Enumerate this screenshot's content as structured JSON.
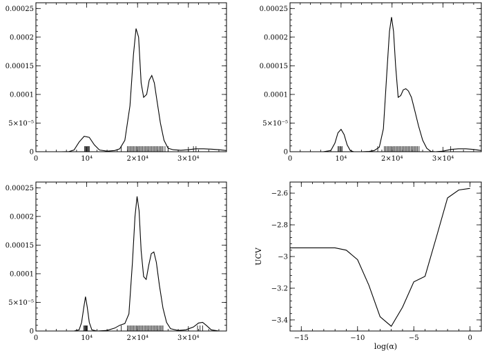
{
  "chart_data": [
    {
      "type": "line",
      "panel": "top-left",
      "xlim": [
        0,
        37500
      ],
      "ylim": [
        0,
        0.00026
      ],
      "xticks": [
        {
          "value": 10000,
          "label": "10⁴"
        },
        {
          "value": 20000,
          "label": "2×10⁴"
        },
        {
          "value": 30000,
          "label": "3×10⁴"
        }
      ],
      "yticks": [
        {
          "value": 0,
          "label": "0"
        },
        {
          "value": 5e-05,
          "label": "5×10⁻⁵"
        },
        {
          "value": 0.0001,
          "label": "0.0001"
        },
        {
          "value": 0.00015,
          "label": "0.00015"
        },
        {
          "value": 0.0002,
          "label": "0.0002"
        },
        {
          "value": 0.00025,
          "label": "0.00025"
        }
      ],
      "xlabel": "",
      "ylabel": "",
      "x": [
        5000,
        6500,
        7500,
        8500,
        9500,
        10500,
        11500,
        12500,
        14000,
        15500,
        16500,
        17500,
        18500,
        19200,
        19700,
        20200,
        20700,
        21200,
        21800,
        22300,
        22800,
        23300,
        23800,
        24500,
        25200,
        26000,
        27000,
        28500,
        30000,
        31500,
        33000,
        34500,
        36000,
        37500
      ],
      "y": [
        0,
        2e-07,
        3e-06,
        1.7e-05,
        2.7e-05,
        2.5e-05,
        1.2e-05,
        3e-06,
        1e-06,
        2e-06,
        5e-06,
        2e-05,
        8e-05,
        0.00017,
        0.000215,
        0.0002,
        0.00012,
        9.5e-05,
        0.0001,
        0.000125,
        0.000133,
        0.00012,
        9e-05,
        5e-05,
        2e-05,
        6e-06,
        3.5e-06,
        2.5e-06,
        3.5e-06,
        5e-06,
        5e-06,
        4.5e-06,
        3.5e-06,
        2e-06
      ],
      "rug": [
        9600,
        9750,
        9900,
        10050,
        10200,
        10350,
        10500,
        16800,
        18000,
        18250,
        18500,
        18750,
        19000,
        19250,
        19500,
        19750,
        20000,
        20250,
        20500,
        20750,
        21000,
        21250,
        21500,
        21750,
        22000,
        22250,
        22500,
        22750,
        23000,
        23250,
        23500,
        23750,
        24000,
        24250,
        24500,
        24750,
        25000,
        25400,
        26000,
        31000,
        31500
      ]
    },
    {
      "type": "line",
      "panel": "top-right",
      "xlim": [
        0,
        37500
      ],
      "ylim": [
        0,
        0.00026
      ],
      "xticks": [
        {
          "value": 10000,
          "label": "10⁴"
        },
        {
          "value": 20000,
          "label": "2×10⁴"
        },
        {
          "value": 30000,
          "label": "3×10⁴"
        }
      ],
      "yticks": [
        {
          "value": 0,
          "label": "0"
        },
        {
          "value": 5e-05,
          "label": "5×10⁻⁵"
        },
        {
          "value": 0.0001,
          "label": "0.0001"
        },
        {
          "value": 0.00015,
          "label": "0.00015"
        },
        {
          "value": 0.0002,
          "label": "0.0002"
        },
        {
          "value": 0.00025,
          "label": "0.00025"
        }
      ],
      "xlabel": "",
      "ylabel": "",
      "x": [
        6500,
        8000,
        8800,
        9400,
        10000,
        10600,
        11200,
        11800,
        12500,
        14000,
        15500,
        16500,
        17500,
        18300,
        19000,
        19500,
        19900,
        20300,
        20700,
        21200,
        21700,
        22200,
        22700,
        23200,
        23800,
        24500,
        25200,
        26000,
        26800,
        27600,
        28500,
        30000,
        31500,
        33000,
        34500,
        36000,
        37500
      ],
      "y": [
        0,
        2e-06,
        1.5e-05,
        3.3e-05,
        3.9e-05,
        3e-05,
        1.2e-05,
        2e-06,
        0,
        0,
        5e-07,
        2e-06,
        8e-06,
        4e-05,
        0.00014,
        0.00021,
        0.000235,
        0.00021,
        0.00015,
        9.5e-05,
        9.8e-05,
        0.000108,
        0.00011,
        0.000106,
        9.5e-05,
        7e-05,
        4.5e-05,
        2e-05,
        6e-06,
        5e-07,
        0,
        1e-06,
        4e-06,
        5e-06,
        5e-06,
        4e-06,
        2e-06
      ],
      "rug": [
        9400,
        9600,
        9800,
        10000,
        10200,
        17200,
        18500,
        18750,
        19000,
        19250,
        19500,
        19750,
        20000,
        20250,
        20500,
        20750,
        21000,
        21250,
        21500,
        21750,
        22000,
        22250,
        22500,
        22750,
        23000,
        23250,
        23500,
        23750,
        24000,
        24250,
        24500,
        24750,
        25000,
        25300,
        31500
      ]
    },
    {
      "type": "line",
      "panel": "bottom-left",
      "xlim": [
        0,
        37500
      ],
      "ylim": [
        0,
        0.00026
      ],
      "xticks": [
        {
          "value": 10000,
          "label": "10⁴"
        },
        {
          "value": 20000,
          "label": "2×10⁴"
        },
        {
          "value": 30000,
          "label": "3×10⁴"
        }
      ],
      "yticks": [
        {
          "value": 0,
          "label": "0"
        },
        {
          "value": 5e-05,
          "label": "5×10⁻⁵"
        },
        {
          "value": 0.0001,
          "label": "0.0001"
        },
        {
          "value": 0.00015,
          "label": "0.00015"
        },
        {
          "value": 0.0002,
          "label": "0.0002"
        },
        {
          "value": 0.00025,
          "label": "0.00025"
        }
      ],
      "xlabel": "",
      "ylabel": "",
      "x": [
        7500,
        8500,
        9000,
        9400,
        9750,
        10100,
        10500,
        11000,
        12000,
        14000,
        15500,
        16500,
        17500,
        18300,
        19000,
        19500,
        19900,
        20300,
        20700,
        21200,
        21700,
        22200,
        22700,
        23200,
        23700,
        24300,
        25000,
        25700,
        26500,
        28000,
        29500,
        31000,
        32000,
        32800,
        33500,
        34500,
        36000
      ],
      "y": [
        0,
        2e-06,
        1.5e-05,
        4e-05,
        6e-05,
        4.2e-05,
        1.5e-05,
        2e-06,
        0,
        1e-06,
        5e-06,
        1e-05,
        1.3e-05,
        3e-05,
        0.00012,
        0.0002,
        0.000235,
        0.00021,
        0.00014,
        9.5e-05,
        9e-05,
        0.000115,
        0.000135,
        0.000138,
        0.00012,
        8e-05,
        4e-05,
        1.5e-05,
        4e-06,
        1e-06,
        2e-06,
        7e-06,
        1.4e-05,
        1.5e-05,
        1e-05,
        2e-06,
        0
      ],
      "rug": [
        9400,
        9550,
        9700,
        9850,
        10000,
        10150,
        16800,
        18000,
        18250,
        18500,
        18750,
        19000,
        19250,
        19500,
        19750,
        20000,
        20250,
        20500,
        20750,
        21000,
        21250,
        21500,
        21750,
        22000,
        22250,
        22500,
        22750,
        23000,
        23250,
        23500,
        23750,
        24000,
        24250,
        24500,
        24750,
        25000,
        31800,
        32300,
        32800
      ]
    },
    {
      "type": "line",
      "panel": "bottom-right",
      "xlim": [
        -16,
        1
      ],
      "ylim": [
        -3.47,
        -2.53
      ],
      "xticks": [
        {
          "value": -15,
          "label": "−15"
        },
        {
          "value": -10,
          "label": "−10"
        },
        {
          "value": -5,
          "label": "−5"
        },
        {
          "value": 0,
          "label": "0"
        }
      ],
      "yticks": [
        {
          "value": -3.4,
          "label": "−3.4"
        },
        {
          "value": -3.2,
          "label": "−3.2"
        },
        {
          "value": -3,
          "label": "−3"
        },
        {
          "value": -2.8,
          "label": "−2.8"
        },
        {
          "value": -2.6,
          "label": "−2.6"
        }
      ],
      "xlabel": "log(α)",
      "ylabel": "UCV",
      "x": [
        -16,
        -12,
        -11,
        -10,
        -9,
        -8,
        -7,
        -6,
        -5,
        -4,
        -3,
        -2,
        -1,
        0
      ],
      "y": [
        -2.945,
        -2.945,
        -2.96,
        -3.02,
        -3.18,
        -3.38,
        -3.44,
        -3.32,
        -3.16,
        -3.125,
        -2.88,
        -2.63,
        -2.58,
        -2.57
      ]
    }
  ]
}
